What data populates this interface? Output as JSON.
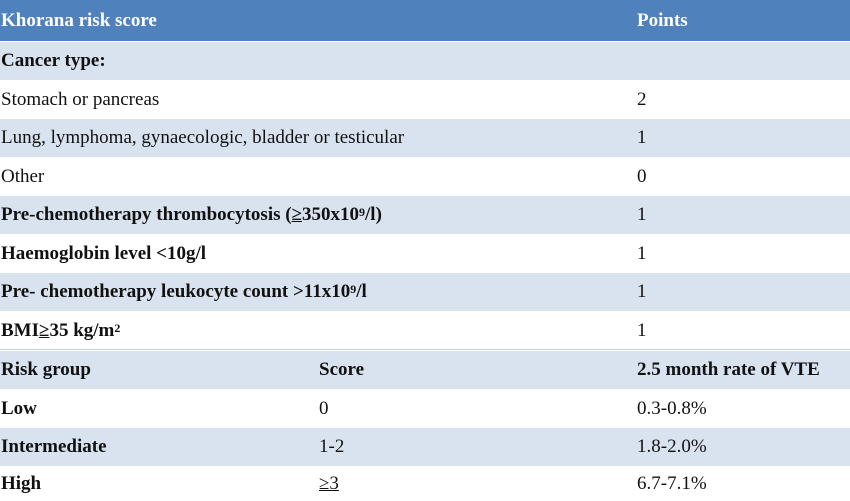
{
  "header": {
    "title": "Khorana risk score",
    "points": "Points"
  },
  "section_label": "Cancer type:",
  "cancer_rows": [
    {
      "label": "Stomach or pancreas",
      "points": "2"
    },
    {
      "label": "Lung, lymphoma, gynaecologic, bladder or testicular",
      "points": "1"
    },
    {
      "label": "Other",
      "points": "0"
    }
  ],
  "thrombocytosis": {
    "prefix": "Pre-chemotherapy thrombocytosis ( ",
    "geq": "≥",
    "value": " 350x10",
    "exp": "9",
    "suffix": "/l)",
    "points": "1"
  },
  "haemoglobin": {
    "label": "Haemoglobin level <10g/l",
    "points": "1"
  },
  "leukocyte": {
    "prefix": "Pre- chemotherapy leukocyte count >11x10",
    "exp": "9",
    "suffix": "/l",
    "points": "1"
  },
  "bmi": {
    "prefix": "BMI ",
    "geq": "≥",
    "value": " 35 kg/m",
    "exp": "2",
    "points": "1"
  },
  "risk_header": {
    "group": "Risk group",
    "score": "Score",
    "rate": "2.5 month rate of VTE"
  },
  "risk_rows": [
    {
      "group": "Low",
      "score": "0",
      "rate": "0.3-0.8%"
    },
    {
      "group": "Intermediate",
      "score": "1-2",
      "rate": "1.8-2.0%"
    },
    {
      "group": "High",
      "score": "≥3",
      "rate": "6.7-7.1%"
    }
  ]
}
